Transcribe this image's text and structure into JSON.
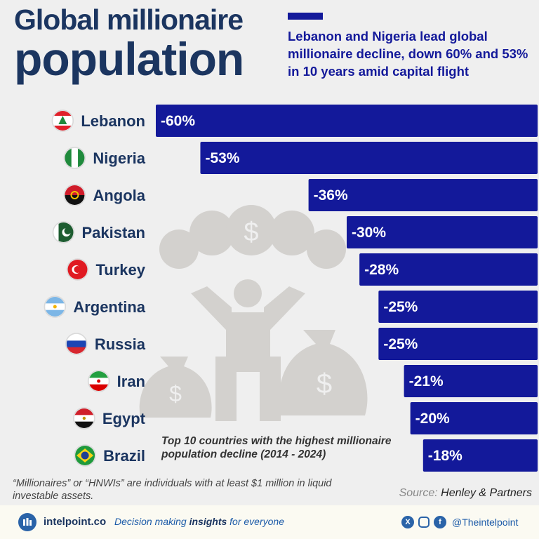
{
  "title": {
    "line1": "Global millionaire",
    "line2": "population"
  },
  "subtitle": "Lebanon and Nigeria lead global millionaire decline, down 60% and 53% in 10 years amid capital flight",
  "note": "Top 10 countries with the highest millionaire population decline (2014 - 2024)",
  "footnote": "“Millionaires” or “HNWIs” are individuals with at least $1 million in liquid investable assets.",
  "source": {
    "label": "Source:",
    "value": "Henley & Partners"
  },
  "footer": {
    "brand": "intelpoint.co",
    "tagline_pre": "Decision making ",
    "tagline_bold": "insights",
    "tagline_post": " for everyone",
    "handle": "@Theintelpoint"
  },
  "colors": {
    "bar": "#13199a",
    "title": "#1b3560",
    "background": "#efefef"
  },
  "chart_data": {
    "type": "bar",
    "orientation": "horizontal",
    "categories": [
      "Lebanon",
      "Nigeria",
      "Angola",
      "Pakistan",
      "Turkey",
      "Argentina",
      "Russia",
      "Iran",
      "Egypt",
      "Brazil"
    ],
    "values": [
      -60,
      -53,
      -36,
      -30,
      -28,
      -25,
      -25,
      -21,
      -20,
      -18
    ],
    "data_labels": [
      "-60%",
      "-53%",
      "-36%",
      "-30%",
      "-28%",
      "-25%",
      "-25%",
      "-21%",
      "-20%",
      "-18%"
    ],
    "flag_icons": [
      "lebanon-flag-icon",
      "nigeria-flag-icon",
      "angola-flag-icon",
      "pakistan-flag-icon",
      "turkey-flag-icon",
      "argentina-flag-icon",
      "russia-flag-icon",
      "iran-flag-icon",
      "egypt-flag-icon",
      "brazil-flag-icon"
    ],
    "unit": "%",
    "xlim": [
      -60,
      0
    ]
  }
}
